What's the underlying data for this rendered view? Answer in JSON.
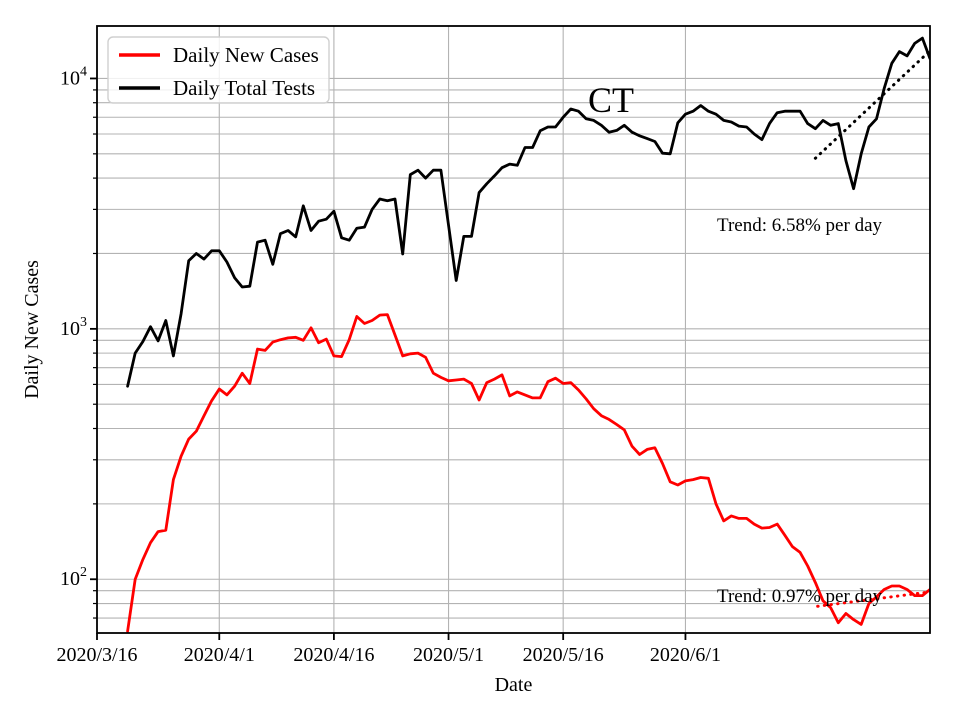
{
  "chart_data": {
    "type": "line",
    "title_annotation": "CT",
    "xlabel": "Date",
    "ylabel": "Daily New Cases",
    "y_scale": "log",
    "grid": "both",
    "legend_position": "upper-left",
    "colors": {
      "cases": "#ff0000",
      "tests": "#000000",
      "grid": "#b3b3b3",
      "axis": "#000000",
      "legend_border": "#d0d0d0"
    },
    "x_axis": {
      "start_date": "2020/3/16",
      "span_days": 109,
      "ticks": [
        {
          "label": "2020/3/16",
          "day": 0
        },
        {
          "label": "2020/4/1",
          "day": 16
        },
        {
          "label": "2020/4/16",
          "day": 31
        },
        {
          "label": "2020/5/1",
          "day": 46
        },
        {
          "label": "2020/5/16",
          "day": 61
        },
        {
          "label": "2020/6/1",
          "day": 77
        }
      ]
    },
    "y_axis": {
      "ylim": [
        61,
        16200
      ],
      "ticks": [
        {
          "label": "10^2",
          "base": "10",
          "exp": "2",
          "value": 100
        },
        {
          "label": "10^3",
          "base": "10",
          "exp": "3",
          "value": 1000
        },
        {
          "label": "10^4",
          "base": "10",
          "exp": "4",
          "value": 10000
        }
      ]
    },
    "series": [
      {
        "key": "daily-new-cases",
        "name": "Daily New Cases",
        "color": "#ff0000",
        "start_date": "2020/3/20",
        "start_day": 4,
        "values": [
          62,
          100,
          120,
          140,
          155,
          157,
          250,
          310,
          363,
          390,
          450,
          516,
          575,
          545,
          590,
          665,
          605,
          830,
          820,
          885,
          905,
          920,
          925,
          900,
          1010,
          880,
          910,
          780,
          775,
          905,
          1120,
          1050,
          1080,
          1135,
          1140,
          945,
          780,
          795,
          800,
          770,
          665,
          640,
          620,
          625,
          630,
          605,
          520,
          610,
          630,
          655,
          540,
          560,
          545,
          530,
          530,
          615,
          635,
          605,
          610,
          570,
          525,
          480,
          450,
          435,
          415,
          395,
          340,
          315,
          330,
          335,
          290,
          245,
          238,
          247,
          250,
          255,
          253,
          200,
          171,
          179,
          175,
          175,
          166,
          160,
          161,
          166,
          150,
          135,
          128,
          113,
          97,
          82,
          77,
          67,
          73,
          69,
          66,
          80,
          85,
          91,
          94,
          94,
          91,
          86,
          86,
          91
        ]
      },
      {
        "key": "daily-total-tests",
        "name": "Daily Total Tests",
        "color": "#000000",
        "start_date": "2020/3/20",
        "start_day": 4,
        "values": [
          590,
          800,
          890,
          1020,
          895,
          1080,
          780,
          1150,
          1870,
          2000,
          1900,
          2050,
          2050,
          1850,
          1600,
          1470,
          1480,
          2220,
          2260,
          1810,
          2400,
          2470,
          2330,
          3100,
          2470,
          2690,
          2740,
          2950,
          2310,
          2260,
          2520,
          2550,
          3000,
          3300,
          3250,
          3300,
          1990,
          4130,
          4300,
          4000,
          4300,
          4300,
          2600,
          1560,
          2340,
          2340,
          3500,
          3800,
          4080,
          4400,
          4550,
          4500,
          5300,
          5300,
          6180,
          6400,
          6400,
          7000,
          7550,
          7400,
          6900,
          6800,
          6500,
          6100,
          6200,
          6500,
          6100,
          5900,
          5750,
          5600,
          5030,
          5000,
          6650,
          7200,
          7400,
          7800,
          7400,
          7200,
          6800,
          6700,
          6450,
          6400,
          6000,
          5700,
          6600,
          7300,
          7400,
          7400,
          7400,
          6600,
          6300,
          6800,
          6500,
          6600,
          4700,
          3630,
          5000,
          6400,
          6900,
          9100,
          11500,
          12800,
          12300,
          13800,
          14500,
          12000
        ]
      }
    ],
    "trend_lines": [
      {
        "key": "tests-trend",
        "label": "Trend: 6.58% per day",
        "color": "#000000",
        "start_day": 94,
        "end_day": 109,
        "start_value": 4800,
        "end_value": 12900
      },
      {
        "key": "cases-trend",
        "label": "Trend: 0.97% per day",
        "color": "#ff0000",
        "start_day": 94.3,
        "end_day": 109,
        "start_value": 78,
        "end_value": 89
      }
    ],
    "legend": {
      "entries": [
        "Daily New Cases",
        "Daily Total Tests"
      ]
    }
  }
}
